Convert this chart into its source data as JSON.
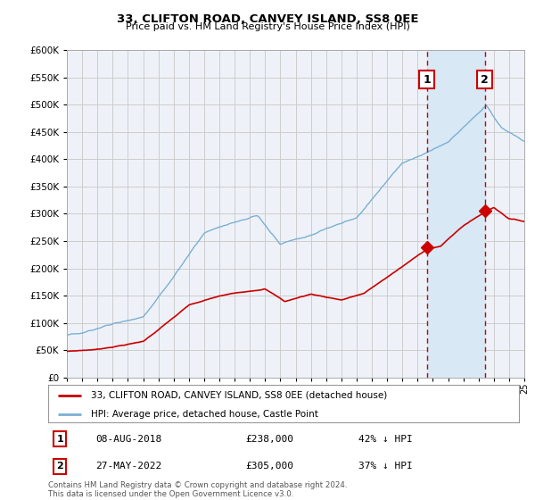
{
  "title1": "33, CLIFTON ROAD, CANVEY ISLAND, SS8 0EE",
  "title2": "Price paid vs. HM Land Registry's House Price Index (HPI)",
  "ylim": [
    0,
    600000
  ],
  "yticks": [
    0,
    50000,
    100000,
    150000,
    200000,
    250000,
    300000,
    350000,
    400000,
    450000,
    500000,
    550000,
    600000
  ],
  "hpi_color": "#7bafd4",
  "price_color": "#cc0000",
  "grid_color": "#cccccc",
  "bg_color": "#ffffff",
  "plot_bg_color": "#eef2f8",
  "shade_color": "#d8e8f5",
  "annotation1": {
    "label": "1",
    "date": "08-AUG-2018",
    "price": "£238,000",
    "pct": "42% ↓ HPI",
    "x_year": 2018.6,
    "y_val": 238000
  },
  "annotation2": {
    "label": "2",
    "date": "27-MAY-2022",
    "price": "£305,000",
    "pct": "37% ↓ HPI",
    "x_year": 2022.4,
    "y_val": 305000
  },
  "legend_line1": "33, CLIFTON ROAD, CANVEY ISLAND, SS8 0EE (detached house)",
  "legend_line2": "HPI: Average price, detached house, Castle Point",
  "footnote": "Contains HM Land Registry data © Crown copyright and database right 2024.\nThis data is licensed under the Open Government Licence v3.0.",
  "xmin": 1995,
  "xmax": 2025
}
